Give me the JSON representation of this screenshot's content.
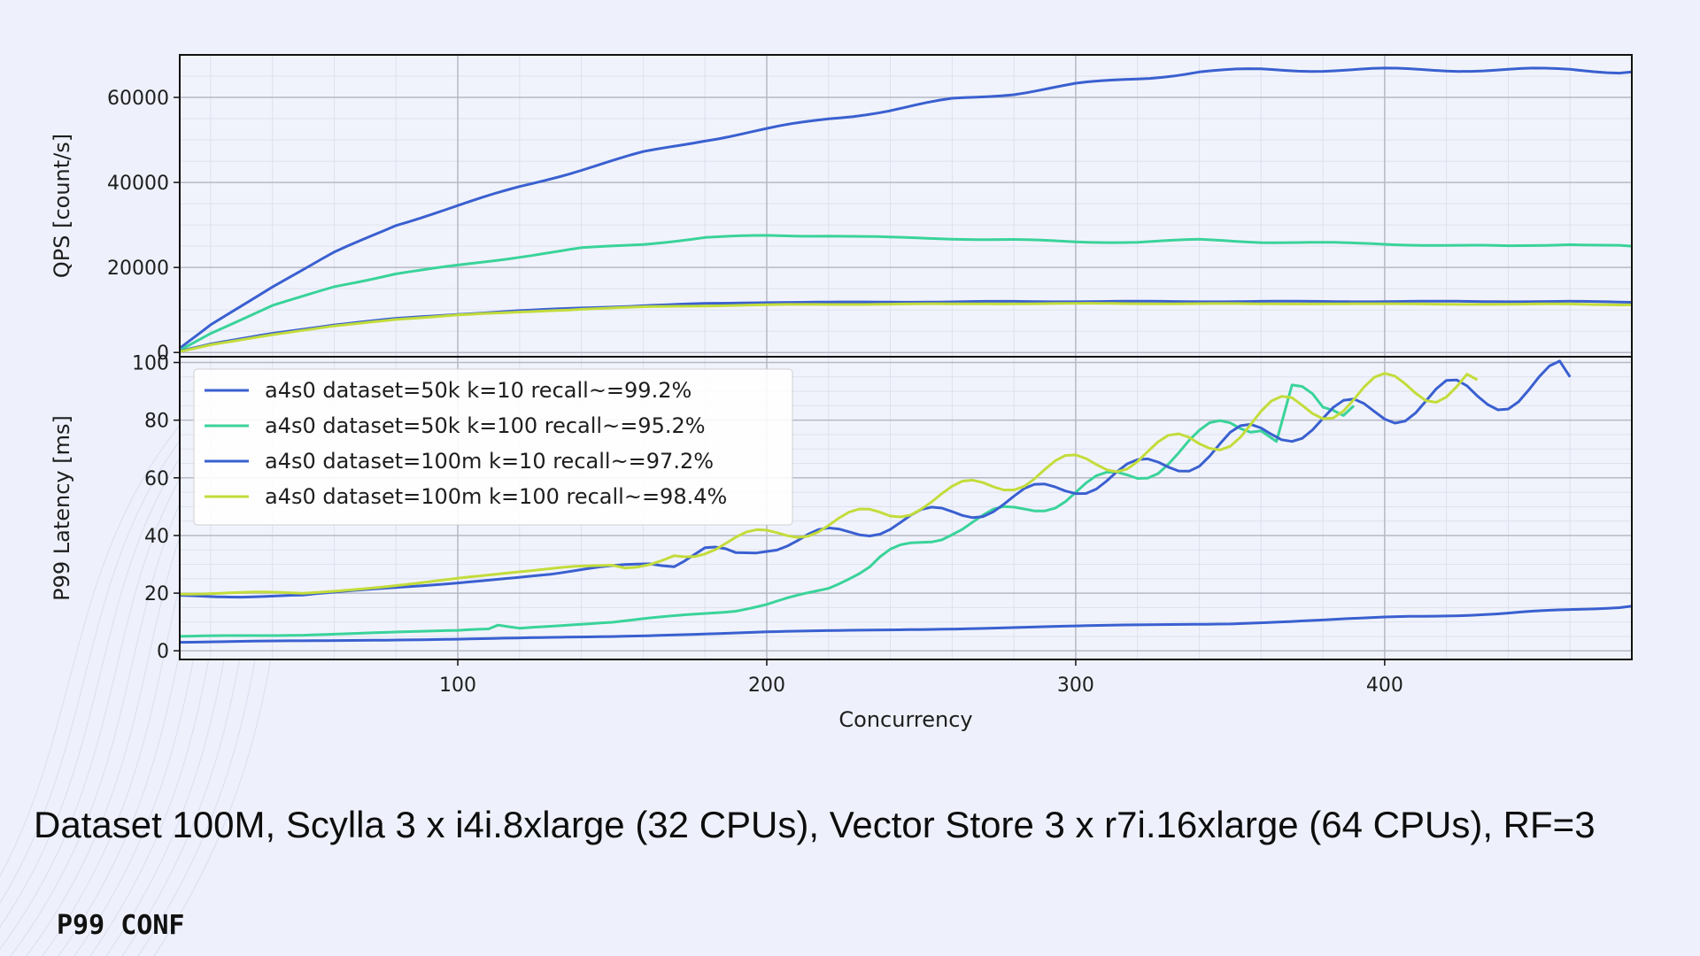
{
  "caption": "Dataset 100M, Scylla 3 x i4i.8xlarge (32 CPUs), Vector Store 3 x r7i.16xlarge (64 CPUs), RF=3",
  "brand": "P99 CONF",
  "colors": {
    "blue": "#3a60d0",
    "teal": "#3ad39a",
    "lime": "#c3dc3b"
  },
  "chart_data": [
    {
      "type": "line",
      "ylabel": "QPS [count/s]",
      "xlabel": "",
      "xlim": [
        10,
        480
      ],
      "ylim": [
        -1000,
        70000
      ],
      "xticks": [
        100,
        200,
        300,
        400
      ],
      "yticks": [
        0,
        20000,
        40000,
        60000
      ],
      "ytick_labels": [
        "0",
        "20000",
        "40000",
        "60000"
      ],
      "grid": true,
      "series": [
        {
          "name": "a4s0 dataset=50k k=10 recall~=99.2%",
          "color": "#3a60d0",
          "x": [
            10,
            20,
            40,
            60,
            80,
            100,
            120,
            140,
            160,
            180,
            200,
            220,
            240,
            260,
            280,
            300,
            320,
            340,
            360,
            380,
            400,
            420,
            440,
            460,
            480
          ],
          "y": [
            1000,
            6500,
            15500,
            23500,
            30000,
            34500,
            39000,
            43000,
            47000,
            50000,
            52500,
            55000,
            57000,
            59500,
            61000,
            63000,
            64500,
            66000,
            66500,
            66500,
            66500,
            66500,
            66500,
            66500,
            66000
          ]
        },
        {
          "name": "a4s0 dataset=50k k=100 recall~=95.2%",
          "color": "#3ad39a",
          "x": [
            10,
            20,
            40,
            60,
            80,
            100,
            120,
            140,
            160,
            180,
            200,
            220,
            240,
            260,
            280,
            300,
            320,
            340,
            360,
            380,
            400,
            420,
            440,
            460,
            480
          ],
          "y": [
            500,
            4500,
            11000,
            15500,
            18500,
            20500,
            22500,
            24500,
            25500,
            27000,
            27500,
            27500,
            27000,
            26800,
            26500,
            26000,
            26000,
            26500,
            26000,
            25800,
            25500,
            25200,
            25000,
            25500,
            25000
          ]
        },
        {
          "name": "a4s0 dataset=100m k=10 recall~=97.2%",
          "color": "#3a60d0",
          "x": [
            10,
            20,
            40,
            60,
            80,
            100,
            120,
            140,
            160,
            180,
            200,
            220,
            240,
            260,
            280,
            300,
            320,
            340,
            360,
            380,
            400,
            420,
            440,
            460,
            480
          ],
          "y": [
            300,
            2000,
            4500,
            6500,
            8000,
            9000,
            9800,
            10500,
            11000,
            11500,
            11800,
            11800,
            11900,
            11900,
            12000,
            12000,
            12000,
            12000,
            12000,
            12000,
            12000,
            12000,
            12000,
            12000,
            11800
          ]
        },
        {
          "name": "a4s0 dataset=100m k=100 recall~=98.4%",
          "color": "#c3dc3b",
          "x": [
            10,
            20,
            40,
            60,
            80,
            100,
            120,
            140,
            160,
            180,
            200,
            220,
            240,
            260,
            280,
            300,
            320,
            340,
            360,
            380,
            400,
            420,
            440,
            460,
            480
          ],
          "y": [
            200,
            1800,
            4200,
            6200,
            7800,
            8800,
            9500,
            10200,
            10700,
            11000,
            11200,
            11300,
            11400,
            11400,
            11500,
            11500,
            11500,
            11500,
            11400,
            11500,
            11400,
            11400,
            11300,
            11400,
            11200
          ]
        }
      ]
    },
    {
      "type": "line",
      "ylabel": "P99 Latency [ms]",
      "xlabel": "Concurrency",
      "xlim": [
        10,
        480
      ],
      "ylim": [
        -3,
        102
      ],
      "xticks": [
        100,
        200,
        300,
        400
      ],
      "yticks": [
        0,
        20,
        40,
        60,
        80,
        100
      ],
      "legend": "top-left",
      "grid": true,
      "series": [
        {
          "name": "a4s0 dataset=50k k=10 recall~=99.2%",
          "color": "#3a60d0",
          "x": [
            10,
            50,
            100,
            150,
            200,
            250,
            300,
            350,
            400,
            440,
            480
          ],
          "y": [
            3,
            3.5,
            4,
            5,
            6.5,
            7.5,
            8.5,
            9.5,
            11.5,
            13,
            15.5
          ]
        },
        {
          "name": "a4s0 dataset=50k k=100 recall~=95.2%",
          "color": "#3ad39a",
          "x": [
            10,
            50,
            100,
            110,
            113,
            120,
            150,
            170,
            190,
            200,
            210,
            220,
            230,
            240,
            250,
            260,
            270,
            280,
            290,
            300,
            310,
            320,
            330,
            340,
            350,
            360,
            365,
            370,
            380,
            390
          ],
          "y": [
            5,
            5.5,
            7,
            7.5,
            9,
            8,
            10,
            12,
            14,
            16,
            19,
            22,
            27,
            33,
            38,
            43,
            45,
            48,
            52,
            55,
            58,
            62,
            68,
            72,
            78,
            82,
            70,
            90,
            80,
            85
          ]
        },
        {
          "name": "a4s0 dataset=100m k=10 recall~=97.2%",
          "color": "#3a60d0",
          "x": [
            10,
            50,
            100,
            130,
            150,
            170,
            180,
            190,
            200,
            210,
            220,
            230,
            240,
            250,
            260,
            270,
            280,
            290,
            300,
            310,
            320,
            330,
            340,
            350,
            360,
            370,
            380,
            390,
            400,
            410,
            420,
            430,
            440,
            450,
            460
          ],
          "y": [
            19,
            19,
            24,
            27,
            29,
            31,
            34,
            33,
            37,
            38,
            40,
            42,
            44,
            46,
            48,
            50,
            52,
            55,
            58,
            60,
            62,
            65,
            68,
            72,
            75,
            78,
            80,
            82,
            84,
            86,
            88,
            88,
            90,
            92,
            95
          ]
        },
        {
          "name": "a4s0 dataset=100m k=100 recall~=98.4%",
          "color": "#c3dc3b",
          "x": [
            10,
            50,
            100,
            130,
            150,
            170,
            180,
            190,
            200,
            210,
            220,
            230,
            240,
            250,
            260,
            270,
            280,
            290,
            300,
            310,
            320,
            330,
            340,
            350,
            360,
            370,
            380,
            390,
            400,
            410,
            420,
            430
          ],
          "y": [
            20,
            20,
            25,
            28,
            30,
            33,
            36,
            38,
            40,
            42,
            44,
            46,
            48,
            52,
            54,
            57,
            60,
            62,
            64,
            66,
            68,
            70,
            72,
            76,
            80,
            84,
            86,
            88,
            90,
            92,
            93,
            94
          ]
        }
      ]
    }
  ]
}
